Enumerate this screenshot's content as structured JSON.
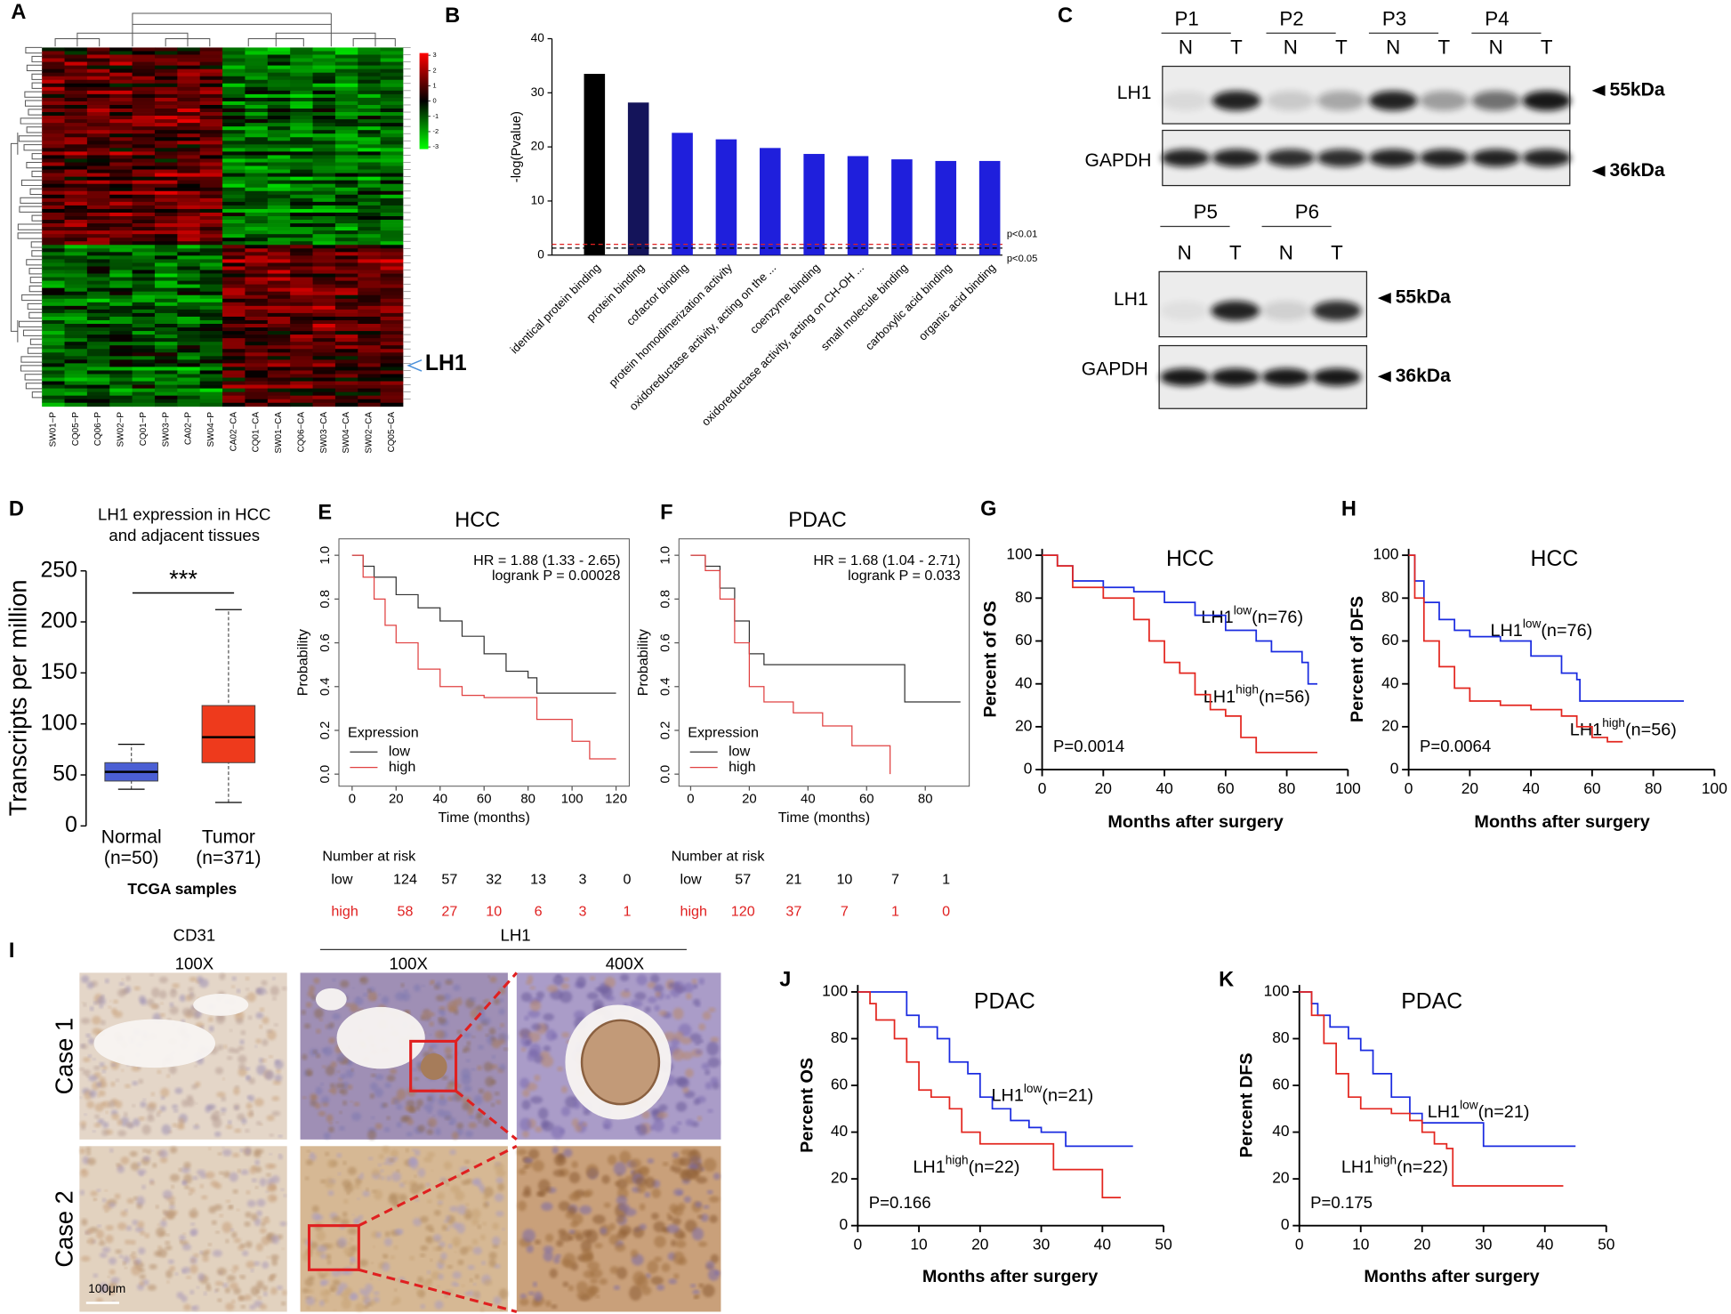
{
  "chart_data": [
    {
      "type": "heatmap",
      "label": "A",
      "columns": [
        "SW01−P",
        "CQ05−P",
        "CQ06−P",
        "SW02−P",
        "CQ01−P",
        "SW03−P",
        "CA02−P",
        "SW04−P",
        "CA02−CA",
        "CQ01−CA",
        "SW01−CA",
        "CQ06−CA",
        "SW03−CA",
        "SW04−CA",
        "SW02−CA",
        "CQ05−CA"
      ],
      "colorbar_ticks": [
        3,
        2,
        1,
        0,
        -1,
        -2,
        -3
      ],
      "annotation": "LH1"
    },
    {
      "type": "bar",
      "label": "B",
      "ylabel": "-log(Pvalue)",
      "categories": [
        "identical protein binding",
        "protein binding",
        "cofactor binding",
        "protein homodimerization activity",
        "oxidoreductase activity, acting on the ...",
        "coenzyme binding",
        "oxidoreductase activity, acting on CH-OH ...",
        "small molecule binding",
        "carboxylic acid binding",
        "organic acid binding"
      ],
      "values": [
        33.5,
        28.2,
        22.6,
        21.4,
        19.8,
        18.7,
        18.3,
        17.7,
        17.4,
        17.4
      ],
      "colors": [
        "#000000",
        "#14145a",
        "#1f1fdc",
        "#1f1fdc",
        "#1f1fdc",
        "#1f1fdc",
        "#1f1fdc",
        "#1f1fdc",
        "#1f1fdc",
        "#1f1fdc"
      ],
      "ylim": [
        0,
        40
      ],
      "yticks": [
        0,
        10,
        20,
        30,
        40
      ],
      "thresholds": [
        {
          "label": "p<0.01",
          "value": 2,
          "color": "#e02020"
        },
        {
          "label": "p<0.05",
          "value": 1.3,
          "color": "#000000"
        }
      ]
    },
    {
      "type": "box",
      "label": "D",
      "title": [
        "LH1 expression in HCC",
        "and adjacent tissues"
      ],
      "ylabel": "Transcripts per million",
      "xlabel": "TCGA samples",
      "significance": "***",
      "ylim": [
        0,
        250
      ],
      "yticks": [
        0,
        50,
        100,
        150,
        200,
        250
      ],
      "boxes": [
        {
          "name": "Normal",
          "n": "(n=50)",
          "color": "#4b5fd4",
          "whisker_low": 36,
          "q1": 44,
          "median": 53,
          "q3": 62,
          "whisker_high": 80
        },
        {
          "name": "Tumor",
          "n": "(n=371)",
          "color": "#ee3a1c",
          "whisker_low": 23,
          "q1": 62,
          "median": 87,
          "q3": 118,
          "whisker_high": 212
        }
      ]
    },
    {
      "type": "km",
      "style": "frame",
      "label": "E",
      "title": "HCC",
      "hr": "HR = 1.88 (1.33 - 2.65)",
      "logrank": "logrank P = 0.00028",
      "legend_title": "Expression",
      "xlabel": "Time (months)",
      "ylabel": "Probability",
      "xlim": [
        -6,
        126
      ],
      "xticks": [
        0,
        20,
        40,
        60,
        80,
        100,
        120
      ],
      "ylim": [
        -0.055,
        1.075
      ],
      "yticks": [
        {
          "value": 0,
          "label": "0.0"
        },
        0.2,
        0.4,
        0.6,
        0.8,
        {
          "value": 1,
          "label": "1.0"
        }
      ],
      "series": [
        {
          "name": "low",
          "color": "#333333",
          "x": [
            0,
            5,
            10,
            20,
            30,
            40,
            50,
            60,
            70,
            80,
            84,
            120
          ],
          "values": [
            1,
            0.95,
            0.9,
            0.82,
            0.76,
            0.7,
            0.63,
            0.55,
            0.47,
            0.44,
            0.37,
            0.37
          ]
        },
        {
          "name": "high",
          "color": "#e04040",
          "x": [
            0,
            5,
            10,
            15,
            20,
            30,
            40,
            50,
            60,
            80,
            84,
            100,
            108,
            120
          ],
          "values": [
            1,
            0.9,
            0.8,
            0.68,
            0.6,
            0.48,
            0.4,
            0.36,
            0.35,
            0.35,
            0.25,
            0.15,
            0.07,
            0.07
          ]
        }
      ],
      "risk_table": {
        "title": "Number at risk",
        "rows": [
          {
            "name": "low",
            "values": [
              124,
              57,
              32,
              13,
              3,
              0
            ]
          },
          {
            "name": "high",
            "values": [
              58,
              27,
              10,
              6,
              3,
              1
            ]
          }
        ]
      }
    },
    {
      "type": "km",
      "style": "frame",
      "label": "F",
      "title": "PDAC",
      "hr": "HR = 1.68 (1.04 - 2.71)",
      "logrank": "logrank P = 0.033",
      "legend_title": "Expression",
      "xlabel": "Time (months)",
      "ylabel": "Probability",
      "xlim": [
        -4,
        95
      ],
      "xticks": [
        0,
        20,
        40,
        60,
        80
      ],
      "ylim": [
        -0.055,
        1.075
      ],
      "yticks": [
        {
          "value": 0,
          "label": "0.0"
        },
        0.2,
        0.4,
        0.6,
        0.8,
        {
          "value": 1,
          "label": "1.0"
        }
      ],
      "series": [
        {
          "name": "low",
          "color": "#333333",
          "x": [
            0,
            5,
            10,
            15,
            20,
            25,
            72,
            73,
            92
          ],
          "values": [
            1,
            0.95,
            0.85,
            0.7,
            0.55,
            0.5,
            0.5,
            0.33,
            0.33
          ]
        },
        {
          "name": "high",
          "color": "#e04040",
          "x": [
            0,
            5,
            10,
            15,
            20,
            25,
            35,
            45,
            55,
            68,
            68
          ],
          "values": [
            1,
            0.93,
            0.8,
            0.6,
            0.4,
            0.33,
            0.28,
            0.22,
            0.13,
            0.13,
            0
          ]
        }
      ],
      "risk_table": {
        "title": "Number at risk",
        "rows": [
          {
            "name": "low",
            "values": [
              57,
              21,
              10,
              7,
              1
            ]
          },
          {
            "name": "high",
            "values": [
              120,
              37,
              7,
              1,
              0
            ]
          }
        ]
      }
    },
    {
      "type": "km",
      "style": "axes",
      "label": "G",
      "title": "HCC",
      "ylabel": "Percent of OS",
      "xlabel": "Months after surgery",
      "pvalue": "P=0.0014",
      "xlim": [
        0,
        100
      ],
      "xticks": [
        0,
        20,
        40,
        60,
        80,
        100
      ],
      "ylim": [
        0,
        103
      ],
      "yticks": [
        0,
        20,
        40,
        60,
        80,
        100
      ],
      "series": [
        {
          "color": "#1a2be0",
          "x": [
            0,
            5,
            10,
            20,
            30,
            40,
            50,
            60,
            70,
            75,
            85,
            87,
            90
          ],
          "values": [
            100,
            95,
            88,
            85,
            83,
            78,
            72,
            65,
            60,
            55,
            50,
            40,
            40
          ]
        },
        {
          "color": "#e3261f",
          "x": [
            0,
            5,
            10,
            20,
            30,
            35,
            40,
            45,
            50,
            55,
            60,
            65,
            70,
            90
          ],
          "values": [
            100,
            95,
            85,
            80,
            70,
            60,
            50,
            45,
            35,
            28,
            25,
            15,
            8,
            8
          ]
        }
      ],
      "annotations": [
        {
          "base": "LH1",
          "sup": "low",
          "rest": "(n=76)"
        },
        {
          "base": "LH1",
          "sup": "high",
          "rest": "(n=56)"
        }
      ]
    },
    {
      "type": "km",
      "style": "axes",
      "label": "H",
      "title": "HCC",
      "ylabel": "Percent of DFS",
      "xlabel": "Months after surgery",
      "pvalue": "P=0.0064",
      "xlim": [
        0,
        100
      ],
      "xticks": [
        0,
        20,
        40,
        60,
        80,
        100
      ],
      "ylim": [
        0,
        103
      ],
      "yticks": [
        0,
        20,
        40,
        60,
        80,
        100
      ],
      "series": [
        {
          "color": "#1a2be0",
          "x": [
            0,
            2,
            5,
            10,
            15,
            20,
            30,
            40,
            50,
            55,
            56,
            90
          ],
          "values": [
            100,
            88,
            78,
            70,
            65,
            62,
            60,
            53,
            45,
            42,
            32,
            32
          ]
        },
        {
          "color": "#e3261f",
          "x": [
            0,
            2,
            5,
            10,
            15,
            20,
            30,
            40,
            50,
            55,
            60,
            65,
            70
          ],
          "values": [
            100,
            80,
            60,
            48,
            38,
            32,
            30,
            28,
            25,
            20,
            15,
            13,
            13
          ]
        }
      ],
      "annotations": [
        {
          "base": "LH1",
          "sup": "low",
          "rest": "(n=76)"
        },
        {
          "base": "LH1",
          "sup": "high",
          "rest": "(n=56)"
        }
      ]
    },
    {
      "type": "km",
      "style": "axes",
      "label": "J",
      "title": "PDAC",
      "ylabel": "Percent OS",
      "xlabel": "Months after surgery",
      "pvalue": "P=0.166",
      "xlim": [
        0,
        50
      ],
      "xticks": [
        0,
        10,
        20,
        30,
        40,
        50
      ],
      "ylim": [
        0,
        103
      ],
      "yticks": [
        0,
        20,
        40,
        60,
        80,
        100
      ],
      "series": [
        {
          "color": "#1a2be0",
          "x": [
            0,
            6,
            8,
            10,
            13,
            15,
            18,
            20,
            22,
            25,
            28,
            30,
            34,
            45
          ],
          "values": [
            100,
            100,
            90,
            85,
            80,
            70,
            65,
            55,
            50,
            45,
            42,
            40,
            34,
            34
          ]
        },
        {
          "color": "#e3261f",
          "x": [
            0,
            2,
            3,
            6,
            8,
            10,
            12,
            15,
            17,
            20,
            32,
            40,
            43
          ],
          "values": [
            100,
            95,
            88,
            80,
            70,
            58,
            55,
            50,
            40,
            35,
            24,
            12,
            12
          ]
        }
      ],
      "annotations": [
        {
          "base": "LH1",
          "sup": "low",
          "rest": "(n=21)"
        },
        {
          "base": "LH1",
          "sup": "high",
          "rest": "(n=22)"
        }
      ]
    },
    {
      "type": "km",
      "style": "axes",
      "label": "K",
      "title": "PDAC",
      "ylabel": "Percent DFS",
      "xlabel": "Months after surgery",
      "pvalue": "P=0.175",
      "xlim": [
        0,
        50
      ],
      "xticks": [
        0,
        10,
        20,
        30,
        40,
        50
      ],
      "ylim": [
        0,
        103
      ],
      "yticks": [
        0,
        20,
        40,
        60,
        80,
        100
      ],
      "series": [
        {
          "color": "#1a2be0",
          "x": [
            0,
            2,
            3,
            5,
            8,
            10,
            12,
            15,
            18,
            20,
            25,
            30,
            45
          ],
          "values": [
            100,
            95,
            90,
            85,
            80,
            75,
            65,
            55,
            48,
            44,
            44,
            34,
            34
          ]
        },
        {
          "color": "#e3261f",
          "x": [
            0,
            2,
            4,
            6,
            8,
            10,
            15,
            18,
            20,
            22,
            24,
            25,
            43
          ],
          "values": [
            100,
            90,
            78,
            65,
            55,
            50,
            48,
            45,
            40,
            35,
            33,
            17,
            17
          ]
        }
      ],
      "annotations": [
        {
          "base": "LH1",
          "sup": "low",
          "rest": "(n=21)"
        },
        {
          "base": "LH1",
          "sup": "high",
          "rest": "(n=22)"
        }
      ]
    }
  ],
  "blots": {
    "label": "C",
    "lane_labels": [
      "N",
      "T"
    ],
    "panels": [
      {
        "patients": [
          "P1",
          "P2",
          "P3",
          "P4"
        ],
        "rows": [
          {
            "protein": "LH1",
            "size": "55kDa"
          },
          {
            "protein": "GAPDH",
            "size": "36kDa"
          }
        ]
      },
      {
        "patients": [
          "P5",
          "P6"
        ],
        "rows": [
          {
            "protein": "LH1",
            "size": "55kDa"
          },
          {
            "protein": "GAPDH",
            "size": "36kDa"
          }
        ]
      }
    ]
  },
  "ihc": {
    "label": "I",
    "headers": [
      "CD31",
      "LH1"
    ],
    "magnifications": [
      "100X",
      "100X",
      "400X"
    ],
    "rows": [
      "Case 1",
      "Case 2"
    ],
    "scale_bar": "100μm"
  }
}
